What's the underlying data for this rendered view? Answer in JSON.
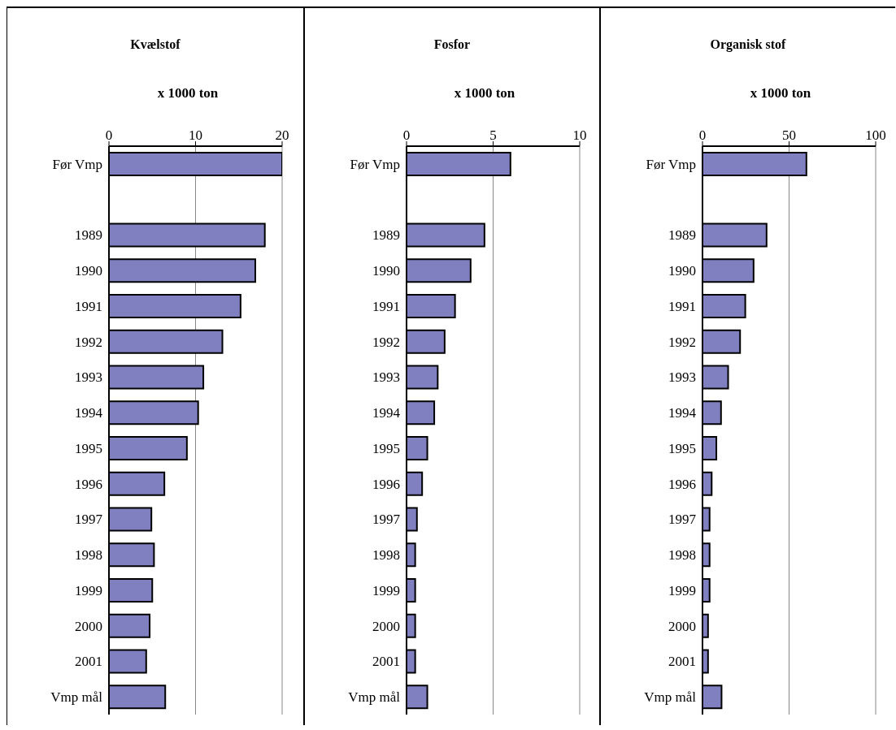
{
  "chart_data": [
    {
      "type": "bar",
      "orientation": "horizontal",
      "title": "Kvælstof",
      "xlabel": "x 1000 ton",
      "categories": [
        "Før Vmp",
        null,
        "1989",
        "1990",
        "1991",
        "1992",
        "1993",
        "1994",
        "1995",
        "1996",
        "1997",
        "1998",
        "1999",
        "2000",
        "2001",
        "Vmp mål"
      ],
      "values": [
        20,
        null,
        18,
        16.9,
        15.2,
        13.1,
        10.9,
        10.3,
        9.0,
        6.4,
        4.9,
        5.2,
        5.0,
        4.7,
        4.3,
        6.5
      ],
      "color": "#8080c0",
      "xlim": [
        0,
        20
      ],
      "xticks": [
        0,
        10,
        20
      ],
      "grid": "x"
    },
    {
      "type": "bar",
      "orientation": "horizontal",
      "title": "Fosfor",
      "xlabel": "x 1000 ton",
      "categories": [
        "Før Vmp",
        null,
        "1989",
        "1990",
        "1991",
        "1992",
        "1993",
        "1994",
        "1995",
        "1996",
        "1997",
        "1998",
        "1999",
        "2000",
        "2001",
        "Vmp mål"
      ],
      "values": [
        6.0,
        null,
        4.5,
        3.7,
        2.8,
        2.2,
        1.8,
        1.6,
        1.2,
        0.9,
        0.6,
        0.5,
        0.5,
        0.5,
        0.5,
        1.2
      ],
      "color": "#8080c0",
      "xlim": [
        0,
        10
      ],
      "xticks": [
        0,
        5,
        10
      ],
      "grid": "x"
    },
    {
      "type": "bar",
      "orientation": "horizontal",
      "title": "Organisk stof",
      "xlabel": "x 1000 ton",
      "categories": [
        "Før Vmp",
        null,
        "1989",
        "1990",
        "1991",
        "1992",
        "1993",
        "1994",
        "1995",
        "1996",
        "1997",
        "1998",
        "1999",
        "2000",
        "2001",
        "Vmp mål"
      ],
      "values": [
        60,
        null,
        37,
        29.5,
        24.7,
        21.7,
        14.8,
        10.7,
        8.0,
        5.3,
        4.1,
        4.1,
        4.1,
        3.2,
        3.2,
        11
      ],
      "color": "#8080c0",
      "xlim": [
        0,
        100
      ],
      "xticks": [
        0,
        50,
        100
      ],
      "grid": "x"
    }
  ]
}
